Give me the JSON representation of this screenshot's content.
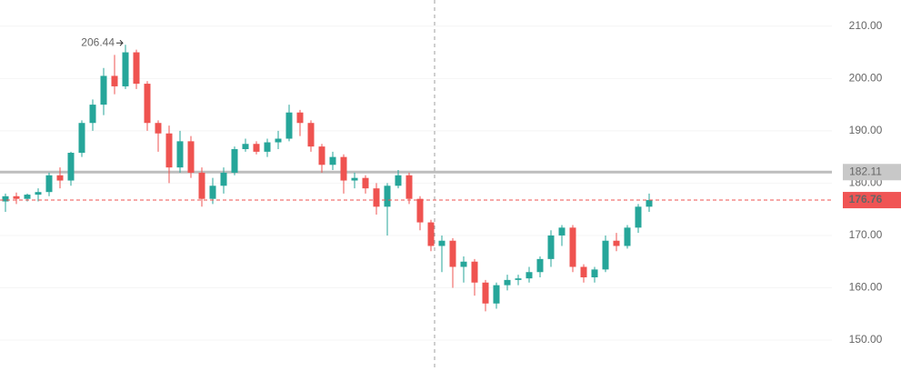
{
  "chart_data": {
    "type": "candlestick",
    "up_color": "#26a69a",
    "down_color": "#ef5350",
    "open": [
      176.5,
      177.5,
      177,
      177.8,
      178.3,
      181.5,
      180.5,
      185.8,
      191.5,
      195,
      200.5,
      198.5,
      205,
      199,
      191.5,
      189.5,
      183,
      188,
      182,
      177,
      179.5,
      182,
      186.5,
      187.5,
      186,
      187.8,
      188.5,
      193.5,
      191.5,
      187,
      183.5,
      185,
      180.5,
      181,
      179,
      175.5,
      179.5,
      181.5,
      177,
      172.5,
      168,
      169,
      164,
      165,
      161,
      157,
      160.5,
      161.5,
      161.8,
      163,
      165.5,
      170,
      171.5,
      164,
      162,
      163.5,
      169,
      168,
      171.5,
      175.5
    ],
    "high": [
      178,
      178.2,
      178,
      179,
      182,
      183,
      186,
      192,
      196,
      202,
      204.5,
      206.44,
      205.5,
      199.5,
      192,
      191,
      190,
      189,
      183,
      181,
      183,
      187,
      188.5,
      188,
      188.5,
      190,
      195,
      194,
      192,
      187.5,
      186,
      185.5,
      182,
      181.5,
      180,
      180,
      182.5,
      182,
      177.5,
      173,
      170,
      169.5,
      166,
      165.5,
      161.5,
      161,
      162.5,
      162.5,
      164,
      166,
      171,
      172,
      172,
      164.5,
      164,
      170,
      170.5,
      172,
      176,
      178
    ],
    "low": [
      174.5,
      176,
      176.5,
      176.5,
      177.5,
      179,
      179.5,
      185,
      190,
      193,
      197,
      198,
      198,
      190,
      186,
      180,
      182,
      181,
      175.5,
      176,
      178,
      181.5,
      186,
      185.5,
      185,
      186.5,
      188,
      189,
      186,
      182,
      182.5,
      178,
      179,
      178,
      174,
      170,
      179,
      176,
      171,
      167,
      163,
      160,
      161,
      158.5,
      155.5,
      156,
      159.5,
      160.5,
      161,
      162,
      164,
      168,
      163,
      161,
      161,
      163,
      167,
      167.5,
      170.5,
      174.5
    ],
    "close": [
      177.5,
      177,
      177.8,
      178.3,
      181.5,
      180.5,
      185.8,
      191.5,
      195,
      200.5,
      198.5,
      205,
      199,
      191.5,
      189.5,
      183,
      188,
      182,
      177,
      179.5,
      182,
      186.5,
      187.5,
      186,
      187.8,
      188.5,
      193.5,
      191.5,
      187,
      183.5,
      185,
      180.5,
      181,
      179,
      175.5,
      179.5,
      181.5,
      177,
      172.5,
      168,
      169,
      164,
      165,
      161,
      157,
      160.5,
      161.5,
      161.8,
      163,
      165.5,
      170,
      171.5,
      164,
      162,
      163.5,
      169,
      168,
      171.5,
      175.5,
      176.76
    ],
    "price_line": 182.11,
    "ylim": [
      144.1,
      215
    ],
    "yticks": [
      {
        "value": 150,
        "label": "150.00"
      },
      {
        "value": 160,
        "label": "160.00"
      },
      {
        "value": 170,
        "label": "170.00"
      },
      {
        "value": 180,
        "label": "180.00"
      },
      {
        "value": 190,
        "label": "190.00"
      },
      {
        "value": 200,
        "label": "200.00"
      },
      {
        "value": 210,
        "label": "210.00"
      }
    ],
    "grid": true
  }
}
